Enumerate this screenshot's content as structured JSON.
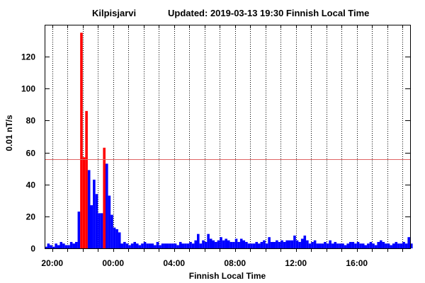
{
  "chart_data": {
    "type": "bar",
    "station": "Kilpisjarvi",
    "updated": "Updated: 2019-03-13 19:30 Finnish Local Time",
    "xlabel": "Finnish Local Time",
    "ylabel": "0.01 nT/s",
    "ylim": [
      0,
      140
    ],
    "yticks": [
      0,
      20,
      40,
      60,
      80,
      100,
      120
    ],
    "xlim_hours": [
      19.5,
      43.5
    ],
    "xtick_labels": [
      {
        "label": "20:00",
        "hour": 20
      },
      {
        "label": "00:00",
        "hour": 24
      },
      {
        "label": "04:00",
        "hour": 28
      },
      {
        "label": "08:00",
        "hour": 32
      },
      {
        "label": "12:00",
        "hour": 36
      },
      {
        "label": "16:00",
        "hour": 40
      }
    ],
    "grid_hours": [
      20,
      21,
      22,
      23,
      24,
      25,
      26,
      27,
      28,
      29,
      30,
      31,
      32,
      33,
      34,
      35,
      36,
      37,
      38,
      39,
      40,
      41,
      42,
      43
    ],
    "threshold": 56,
    "threshold_color": "#e06666",
    "normal_color": "#0000ff",
    "alert_color": "#ff0000",
    "bin_minutes": 10,
    "start_hour": 19.5,
    "values": [
      1,
      3,
      2,
      1,
      3,
      2,
      4,
      3,
      2,
      2,
      4,
      3,
      4,
      23,
      135,
      57,
      86,
      49,
      27,
      43,
      34,
      22,
      22,
      63,
      53,
      33,
      21,
      13,
      12,
      10,
      3,
      4,
      3,
      2,
      3,
      4,
      3,
      2,
      3,
      4,
      3,
      3,
      3,
      2,
      4,
      2,
      3,
      3,
      3,
      3,
      3,
      3,
      2,
      4,
      3,
      3,
      3,
      4,
      3,
      5,
      9,
      3,
      5,
      4,
      9,
      6,
      5,
      4,
      5,
      7,
      5,
      6,
      5,
      4,
      4,
      6,
      4,
      6,
      5,
      4,
      3,
      3,
      3,
      4,
      3,
      4,
      5,
      3,
      7,
      4,
      4,
      5,
      4,
      5,
      4,
      5,
      5,
      5,
      8,
      5,
      4,
      6,
      8,
      5,
      3,
      4,
      5,
      3,
      3,
      3,
      4,
      3,
      5,
      3,
      4,
      3,
      3,
      3,
      2,
      3,
      4,
      4,
      3,
      4,
      3,
      3,
      2,
      3,
      4,
      3,
      2,
      4,
      5,
      4,
      3,
      3,
      2,
      3,
      4,
      3,
      3,
      4,
      3,
      7,
      3
    ]
  }
}
